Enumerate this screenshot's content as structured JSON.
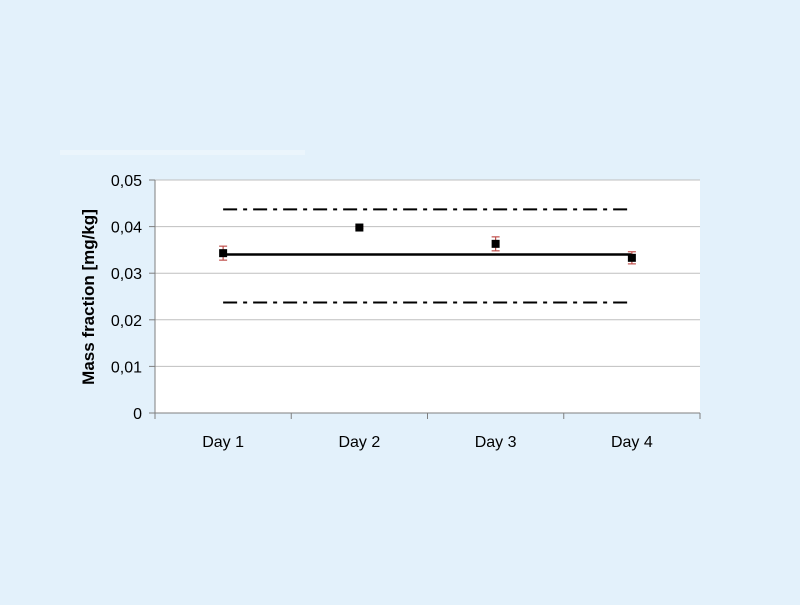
{
  "chart_data": {
    "type": "scatter",
    "categories": [
      "Day 1",
      "Day 2",
      "Day 3",
      "Day 4"
    ],
    "series": [
      {
        "values": [
          0.0343,
          0.0398,
          0.0363,
          0.0333
        ],
        "error": [
          0.0015,
          0.0002,
          0.0015,
          0.0013
        ],
        "marker_color": "#000000",
        "error_color": "#c0504d"
      }
    ],
    "reference_lines": [
      {
        "value": 0.034,
        "style": "solid"
      },
      {
        "value": 0.0437,
        "style": "dash-dot"
      },
      {
        "value": 0.0237,
        "style": "dash-dot"
      }
    ],
    "ylabel": "Mass fraction [mg/kg]",
    "xlabel": "",
    "ylim": [
      0,
      0.05
    ],
    "yticks": [
      "0",
      "0,01",
      "0,02",
      "0,03",
      "0,04",
      "0,05"
    ],
    "grid": "horizontal",
    "legend": "none"
  },
  "colors": {
    "background": "#e3f1fb",
    "plot_area": "#ffffff",
    "gridline": "#bfbfbf",
    "axis": "#7f7f7f"
  }
}
